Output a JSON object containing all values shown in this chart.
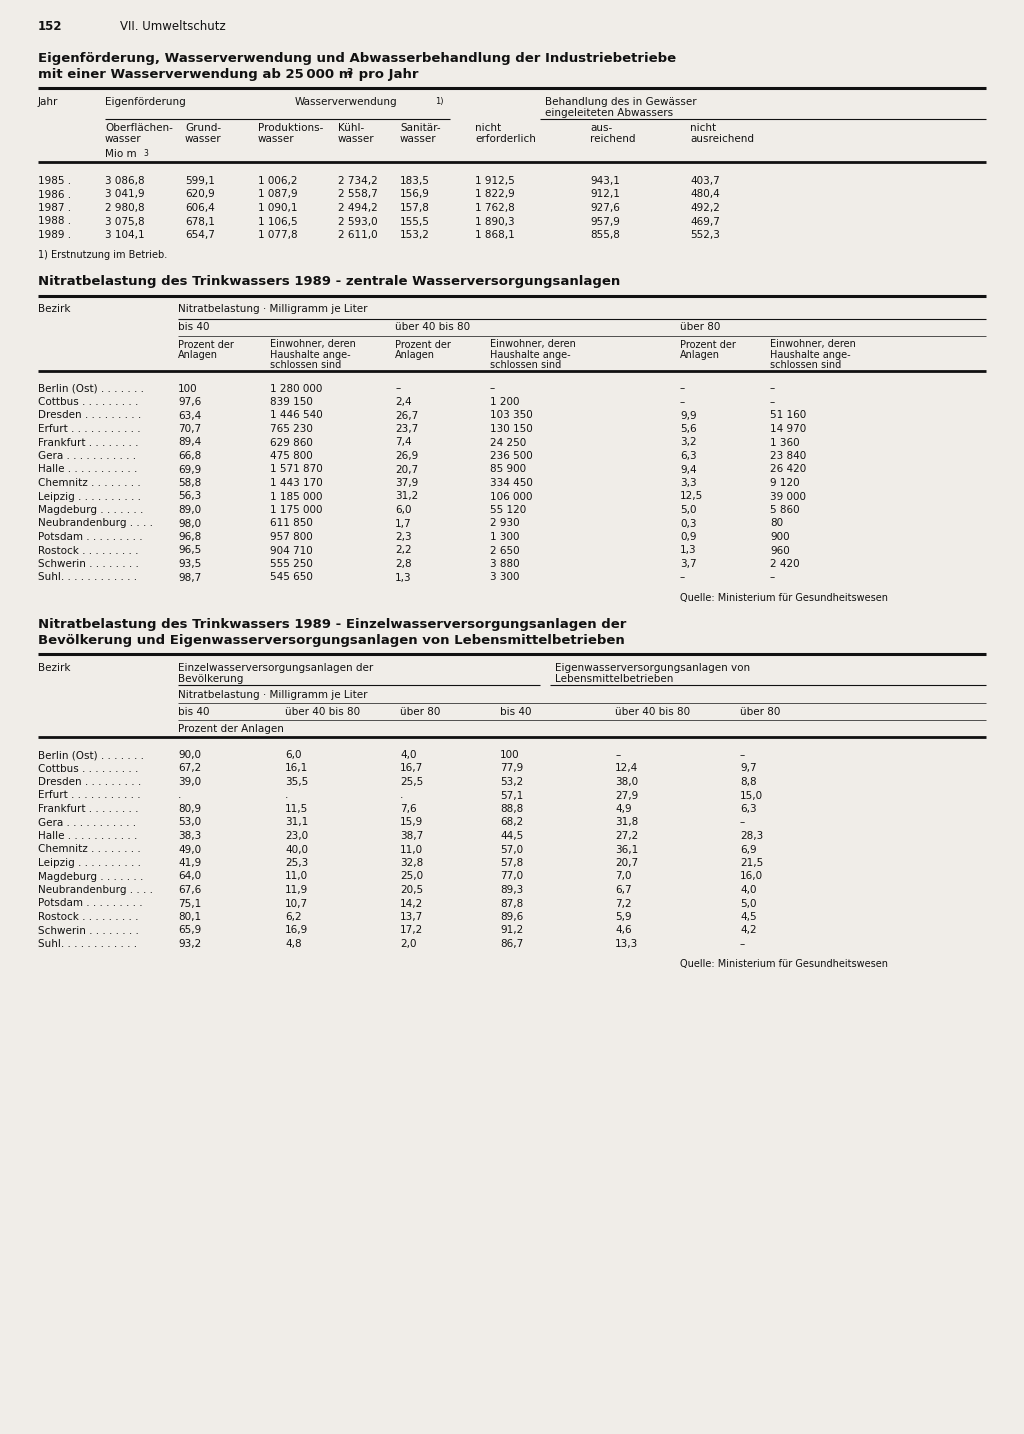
{
  "page_num": "152",
  "chapter": "VII. Umweltschutz",
  "bg_color": "#f0ede8",
  "table1": {
    "title_line1": "Eigenförderung, Wasserverwendung und Abwasserbehandlung der Industriebetriebe",
    "title_line2a": "mit einer Wasserverwendung ab 25 000 m",
    "title_line2b": " pro Jahr",
    "data": [
      [
        "1985 .",
        "3 086,8",
        "599,1",
        "1 006,2",
        "2 734,2",
        "183,5",
        "1 912,5",
        "943,1",
        "403,7"
      ],
      [
        "1986 .",
        "3 041,9",
        "620,9",
        "1 087,9",
        "2 558,7",
        "156,9",
        "1 822,9",
        "912,1",
        "480,4"
      ],
      [
        "1987 .",
        "2 980,8",
        "606,4",
        "1 090,1",
        "2 494,2",
        "157,8",
        "1 762,8",
        "927,6",
        "492,2"
      ],
      [
        "1988 .",
        "3 075,8",
        "678,1",
        "1 106,5",
        "2 593,0",
        "155,5",
        "1 890,3",
        "957,9",
        "469,7"
      ],
      [
        "1989 .",
        "3 104,1",
        "654,7",
        "1 077,8",
        "2 611,0",
        "153,2",
        "1 868,1",
        "855,8",
        "552,3"
      ]
    ],
    "footnote": "1) Erstnutzung im Betrieb."
  },
  "table2": {
    "title": "Nitratbelastung des Trinkwassers 1989 - zentrale Wasserversorgungsanlagen",
    "data": [
      [
        "Berlin (Ost) . . . . . . .",
        "100",
        "1 280 000",
        "–",
        "–",
        "–",
        "–"
      ],
      [
        "Cottbus . . . . . . . . .",
        "97,6",
        "839 150",
        "2,4",
        "1 200",
        "–",
        "–"
      ],
      [
        "Dresden . . . . . . . . .",
        "63,4",
        "1 446 540",
        "26,7",
        "103 350",
        "9,9",
        "51 160"
      ],
      [
        "Erfurt . . . . . . . . . . .",
        "70,7",
        "765 230",
        "23,7",
        "130 150",
        "5,6",
        "14 970"
      ],
      [
        "Frankfurt . . . . . . . .",
        "89,4",
        "629 860",
        "7,4",
        "24 250",
        "3,2",
        "1 360"
      ],
      [
        "Gera . . . . . . . . . . .",
        "66,8",
        "475 800",
        "26,9",
        "236 500",
        "6,3",
        "23 840"
      ],
      [
        "Halle . . . . . . . . . . .",
        "69,9",
        "1 571 870",
        "20,7",
        "85 900",
        "9,4",
        "26 420"
      ],
      [
        "Chemnitz . . . . . . . .",
        "58,8",
        "1 443 170",
        "37,9",
        "334 450",
        "3,3",
        "9 120"
      ],
      [
        "Leipzig . . . . . . . . . .",
        "56,3",
        "1 185 000",
        "31,2",
        "106 000",
        "12,5",
        "39 000"
      ],
      [
        "Magdeburg . . . . . . .",
        "89,0",
        "1 175 000",
        "6,0",
        "55 120",
        "5,0",
        "5 860"
      ],
      [
        "Neubrandenburg . . . .",
        "98,0",
        "611 850",
        "1,7",
        "2 930",
        "0,3",
        "80"
      ],
      [
        "Potsdam . . . . . . . . .",
        "96,8",
        "957 800",
        "2,3",
        "1 300",
        "0,9",
        "900"
      ],
      [
        "Rostock . . . . . . . . .",
        "96,5",
        "904 710",
        "2,2",
        "2 650",
        "1,3",
        "960"
      ],
      [
        "Schwerin . . . . . . . .",
        "93,5",
        "555 250",
        "2,8",
        "3 880",
        "3,7",
        "2 420"
      ],
      [
        "Suhl. . . . . . . . . . . .",
        "98,7",
        "545 650",
        "1,3",
        "3 300",
        "–",
        "–"
      ]
    ],
    "source": "Quelle: Ministerium für Gesundheitswesen"
  },
  "table3": {
    "title_line1": "Nitratbelastung des Trinkwassers 1989 - Einzelwasserversorgungsanlagen der",
    "title_line2": "Bevölkerung und Eigenwasserversorgungsanlagen von Lebensmittelbetrieben",
    "data": [
      [
        "Berlin (Ost) . . . . . . .",
        "90,0",
        "6,0",
        "4,0",
        "100",
        "–",
        "–"
      ],
      [
        "Cottbus . . . . . . . . .",
        "67,2",
        "16,1",
        "16,7",
        "77,9",
        "12,4",
        "9,7"
      ],
      [
        "Dresden . . . . . . . . .",
        "39,0",
        "35,5",
        "25,5",
        "53,2",
        "38,0",
        "8,8"
      ],
      [
        "Erfurt . . . . . . . . . . .",
        ".",
        ".",
        ".",
        "57,1",
        "27,9",
        "15,0"
      ],
      [
        "Frankfurt . . . . . . . .",
        "80,9",
        "11,5",
        "7,6",
        "88,8",
        "4,9",
        "6,3"
      ],
      [
        "Gera . . . . . . . . . . .",
        "53,0",
        "31,1",
        "15,9",
        "68,2",
        "31,8",
        "–"
      ],
      [
        "Halle . . . . . . . . . . .",
        "38,3",
        "23,0",
        "38,7",
        "44,5",
        "27,2",
        "28,3"
      ],
      [
        "Chemnitz . . . . . . . .",
        "49,0",
        "40,0",
        "11,0",
        "57,0",
        "36,1",
        "6,9"
      ],
      [
        "Leipzig . . . . . . . . . .",
        "41,9",
        "25,3",
        "32,8",
        "57,8",
        "20,7",
        "21,5"
      ],
      [
        "Magdeburg . . . . . . .",
        "64,0",
        "11,0",
        "25,0",
        "77,0",
        "7,0",
        "16,0"
      ],
      [
        "Neubrandenburg . . . .",
        "67,6",
        "11,9",
        "20,5",
        "89,3",
        "6,7",
        "4,0"
      ],
      [
        "Potsdam . . . . . . . . .",
        "75,1",
        "10,7",
        "14,2",
        "87,8",
        "7,2",
        "5,0"
      ],
      [
        "Rostock . . . . . . . . .",
        "80,1",
        "6,2",
        "13,7",
        "89,6",
        "5,9",
        "4,5"
      ],
      [
        "Schwerin . . . . . . . .",
        "65,9",
        "16,9",
        "17,2",
        "91,2",
        "4,6",
        "4,2"
      ],
      [
        "Suhl. . . . . . . . . . . .",
        "93,2",
        "4,8",
        "2,0",
        "86,7",
        "13,3",
        "–"
      ]
    ],
    "source": "Quelle: Ministerium für Gesundheitswesen"
  }
}
